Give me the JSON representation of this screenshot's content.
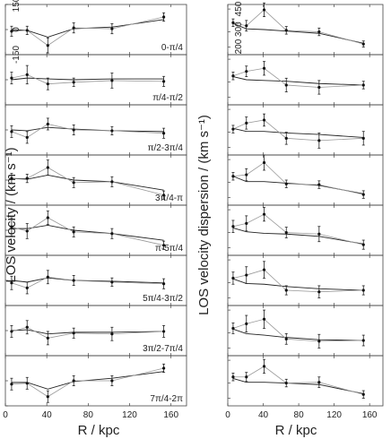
{
  "chart_data": [
    {
      "type": "scatter",
      "ylabel": "LOS velocity / (km s⁻¹)",
      "xlabel": "R / kpc",
      "xlim": [
        0,
        175
      ],
      "ylim": [
        -150,
        150
      ],
      "xticks": [
        0,
        40,
        80,
        120,
        160
      ],
      "yticks": [
        150,
        0,
        -150
      ],
      "panels": [
        {
          "label": "0-π/4",
          "points": [
            {
              "x": 6,
              "y": -10,
              "err": 30
            },
            {
              "x": 21,
              "y": -5,
              "err": 25
            },
            {
              "x": 41,
              "y": -95,
              "err": 45
            },
            {
              "x": 66,
              "y": 10,
              "err": 30
            },
            {
              "x": 103,
              "y": 5,
              "err": 30
            },
            {
              "x": 153,
              "y": 75,
              "err": 25
            }
          ],
          "model": [
            {
              "x": 6,
              "y": 0
            },
            {
              "x": 21,
              "y": -5
            },
            {
              "x": 41,
              "y": -45
            },
            {
              "x": 66,
              "y": 5
            },
            {
              "x": 103,
              "y": 15
            },
            {
              "x": 153,
              "y": 60
            }
          ]
        },
        {
          "label": "π/4-π/2",
          "points": [
            {
              "x": 6,
              "y": 10,
              "err": 35
            },
            {
              "x": 21,
              "y": 30,
              "err": 55
            },
            {
              "x": 41,
              "y": -25,
              "err": 35
            },
            {
              "x": 66,
              "y": -15,
              "err": 25
            },
            {
              "x": 103,
              "y": -5,
              "err": 45
            },
            {
              "x": 153,
              "y": -10,
              "err": 30
            }
          ],
          "model": [
            {
              "x": 6,
              "y": 0
            },
            {
              "x": 21,
              "y": 10
            },
            {
              "x": 41,
              "y": 5
            },
            {
              "x": 66,
              "y": 0
            },
            {
              "x": 103,
              "y": 5
            },
            {
              "x": 153,
              "y": 5
            }
          ]
        },
        {
          "label": "π/2-3π/4",
          "points": [
            {
              "x": 6,
              "y": -10,
              "err": 35
            },
            {
              "x": 21,
              "y": -45,
              "err": 35
            },
            {
              "x": 41,
              "y": 35,
              "err": 35
            },
            {
              "x": 66,
              "y": 0,
              "err": 30
            },
            {
              "x": 103,
              "y": -5,
              "err": 25
            },
            {
              "x": 153,
              "y": -20,
              "err": 30
            }
          ],
          "model": [
            {
              "x": 6,
              "y": 0
            },
            {
              "x": 21,
              "y": -5
            },
            {
              "x": 41,
              "y": 15
            },
            {
              "x": 66,
              "y": 5
            },
            {
              "x": 103,
              "y": -5
            },
            {
              "x": 153,
              "y": -10
            }
          ]
        },
        {
          "label": "3π/4-π",
          "points": [
            {
              "x": 6,
              "y": 10,
              "err": 30
            },
            {
              "x": 21,
              "y": 10,
              "err": 25
            },
            {
              "x": 41,
              "y": 75,
              "err": 45
            },
            {
              "x": 66,
              "y": -15,
              "err": 30
            },
            {
              "x": 103,
              "y": -10,
              "err": 30
            },
            {
              "x": 153,
              "y": -90,
              "err": 25
            }
          ],
          "model": [
            {
              "x": 6,
              "y": 10
            },
            {
              "x": 21,
              "y": 5
            },
            {
              "x": 41,
              "y": 30
            },
            {
              "x": 66,
              "y": 0
            },
            {
              "x": 103,
              "y": -10
            },
            {
              "x": 153,
              "y": -60
            }
          ]
        },
        {
          "label": "π-5π/4",
          "points": [
            {
              "x": 6,
              "y": 20,
              "err": 55
            },
            {
              "x": 21,
              "y": -5,
              "err": 45
            },
            {
              "x": 41,
              "y": 75,
              "err": 40
            },
            {
              "x": 66,
              "y": -10,
              "err": 30
            },
            {
              "x": 103,
              "y": -20,
              "err": 30
            },
            {
              "x": 153,
              "y": -90,
              "err": 25
            }
          ],
          "model": [
            {
              "x": 6,
              "y": 10
            },
            {
              "x": 21,
              "y": 10
            },
            {
              "x": 41,
              "y": 30
            },
            {
              "x": 66,
              "y": 0
            },
            {
              "x": 103,
              "y": -20
            },
            {
              "x": 153,
              "y": -60
            }
          ]
        },
        {
          "label": "5π/4-3π/2",
          "points": [
            {
              "x": 6,
              "y": -15,
              "err": 40
            },
            {
              "x": 21,
              "y": -45,
              "err": 35
            },
            {
              "x": 41,
              "y": 20,
              "err": 40
            },
            {
              "x": 66,
              "y": 0,
              "err": 30
            },
            {
              "x": 103,
              "y": -10,
              "err": 25
            },
            {
              "x": 153,
              "y": -20,
              "err": 30
            }
          ],
          "model": [
            {
              "x": 6,
              "y": 0
            },
            {
              "x": 21,
              "y": -10
            },
            {
              "x": 41,
              "y": 15
            },
            {
              "x": 66,
              "y": 0
            },
            {
              "x": 103,
              "y": -5
            },
            {
              "x": 153,
              "y": -15
            }
          ]
        },
        {
          "label": "3π/2-7π/4",
          "points": [
            {
              "x": 6,
              "y": -5,
              "err": 35
            },
            {
              "x": 21,
              "y": 20,
              "err": 40
            },
            {
              "x": 41,
              "y": -45,
              "err": 40
            },
            {
              "x": 66,
              "y": -15,
              "err": 30
            },
            {
              "x": 103,
              "y": -20,
              "err": 40
            },
            {
              "x": 153,
              "y": -5,
              "err": 35
            }
          ],
          "model": [
            {
              "x": 6,
              "y": 0
            },
            {
              "x": 21,
              "y": 5
            },
            {
              "x": 41,
              "y": -20
            },
            {
              "x": 66,
              "y": -10
            },
            {
              "x": 103,
              "y": -10
            },
            {
              "x": 153,
              "y": -5
            }
          ]
        },
        {
          "label": "7π/4-2π",
          "points": [
            {
              "x": 6,
              "y": -20,
              "err": 35
            },
            {
              "x": 21,
              "y": -15,
              "err": 35
            },
            {
              "x": 41,
              "y": -95,
              "err": 35
            },
            {
              "x": 66,
              "y": 0,
              "err": 30
            },
            {
              "x": 103,
              "y": 0,
              "err": 30
            },
            {
              "x": 153,
              "y": 75,
              "err": 25
            }
          ],
          "model": [
            {
              "x": 6,
              "y": -10
            },
            {
              "x": 21,
              "y": -10
            },
            {
              "x": 41,
              "y": -50
            },
            {
              "x": 66,
              "y": -5
            },
            {
              "x": 103,
              "y": 15
            },
            {
              "x": 153,
              "y": 55
            }
          ]
        }
      ]
    },
    {
      "type": "scatter",
      "ylabel": "LOS velocity dispersion / (km s⁻¹)",
      "xlabel": "R / kpc",
      "xlim": [
        0,
        175
      ],
      "ylim": [
        150,
        480
      ],
      "xticks": [
        0,
        40,
        80,
        120,
        160
      ],
      "yticks": [
        450,
        300,
        200
      ],
      "ytick_text": "200 300",
      "panels": [
        {
          "label": "",
          "points": [
            {
              "x": 6,
              "y": 360,
              "err": 25
            },
            {
              "x": 21,
              "y": 340,
              "err": 35
            },
            {
              "x": 41,
              "y": 445,
              "err": 45
            },
            {
              "x": 66,
              "y": 310,
              "err": 25
            },
            {
              "x": 103,
              "y": 300,
              "err": 25
            },
            {
              "x": 153,
              "y": 220,
              "err": 20
            }
          ],
          "model": [
            {
              "x": 6,
              "y": 355
            },
            {
              "x": 21,
              "y": 320
            },
            {
              "x": 41,
              "y": 315
            },
            {
              "x": 66,
              "y": 305
            },
            {
              "x": 103,
              "y": 290
            },
            {
              "x": 153,
              "y": 225
            }
          ]
        },
        {
          "label": "",
          "points": [
            {
              "x": 6,
              "y": 340,
              "err": 25
            },
            {
              "x": 21,
              "y": 370,
              "err": 35
            },
            {
              "x": 41,
              "y": 390,
              "err": 45
            },
            {
              "x": 66,
              "y": 280,
              "err": 45
            },
            {
              "x": 103,
              "y": 265,
              "err": 45
            },
            {
              "x": 153,
              "y": 280,
              "err": 25
            }
          ],
          "model": [
            {
              "x": 6,
              "y": 335
            },
            {
              "x": 21,
              "y": 315
            },
            {
              "x": 41,
              "y": 310
            },
            {
              "x": 66,
              "y": 305
            },
            {
              "x": 103,
              "y": 290
            },
            {
              "x": 153,
              "y": 280
            }
          ]
        },
        {
          "label": "",
          "points": [
            {
              "x": 6,
              "y": 320,
              "err": 25
            },
            {
              "x": 21,
              "y": 360,
              "err": 40
            },
            {
              "x": 41,
              "y": 380,
              "err": 40
            },
            {
              "x": 66,
              "y": 260,
              "err": 40
            },
            {
              "x": 103,
              "y": 245,
              "err": 50
            },
            {
              "x": 153,
              "y": 260,
              "err": 45
            }
          ],
          "model": [
            {
              "x": 6,
              "y": 325
            },
            {
              "x": 21,
              "y": 305
            },
            {
              "x": 41,
              "y": 305
            },
            {
              "x": 66,
              "y": 295
            },
            {
              "x": 103,
              "y": 285
            },
            {
              "x": 153,
              "y": 265
            }
          ]
        },
        {
          "label": "",
          "points": [
            {
              "x": 6,
              "y": 340,
              "err": 25
            },
            {
              "x": 21,
              "y": 350,
              "err": 40
            },
            {
              "x": 41,
              "y": 430,
              "err": 50
            },
            {
              "x": 66,
              "y": 290,
              "err": 25
            },
            {
              "x": 103,
              "y": 285,
              "err": 25
            },
            {
              "x": 153,
              "y": 220,
              "err": 25
            }
          ],
          "model": [
            {
              "x": 6,
              "y": 340
            },
            {
              "x": 21,
              "y": 305
            },
            {
              "x": 41,
              "y": 305
            },
            {
              "x": 66,
              "y": 295
            },
            {
              "x": 103,
              "y": 280
            },
            {
              "x": 153,
              "y": 225
            }
          ]
        },
        {
          "label": "",
          "points": [
            {
              "x": 6,
              "y": 340,
              "err": 40
            },
            {
              "x": 21,
              "y": 360,
              "err": 50
            },
            {
              "x": 41,
              "y": 420,
              "err": 45
            },
            {
              "x": 66,
              "y": 300,
              "err": 35
            },
            {
              "x": 103,
              "y": 290,
              "err": 50
            },
            {
              "x": 153,
              "y": 220,
              "err": 30
            }
          ],
          "model": [
            {
              "x": 6,
              "y": 330
            },
            {
              "x": 21,
              "y": 305
            },
            {
              "x": 41,
              "y": 295
            },
            {
              "x": 66,
              "y": 290
            },
            {
              "x": 103,
              "y": 275
            },
            {
              "x": 153,
              "y": 225
            }
          ]
        },
        {
          "label": "",
          "points": [
            {
              "x": 6,
              "y": 330,
              "err": 40
            },
            {
              "x": 21,
              "y": 350,
              "err": 55
            },
            {
              "x": 41,
              "y": 385,
              "err": 55
            },
            {
              "x": 66,
              "y": 250,
              "err": 30
            },
            {
              "x": 103,
              "y": 240,
              "err": 40
            },
            {
              "x": 153,
              "y": 250,
              "err": 30
            }
          ],
          "model": [
            {
              "x": 6,
              "y": 325
            },
            {
              "x": 21,
              "y": 295
            },
            {
              "x": 41,
              "y": 290
            },
            {
              "x": 66,
              "y": 275
            },
            {
              "x": 103,
              "y": 260
            },
            {
              "x": 153,
              "y": 250
            }
          ]
        },
        {
          "label": "",
          "points": [
            {
              "x": 6,
              "y": 330,
              "err": 35
            },
            {
              "x": 21,
              "y": 360,
              "err": 55
            },
            {
              "x": 41,
              "y": 390,
              "err": 60
            },
            {
              "x": 66,
              "y": 260,
              "err": 35
            },
            {
              "x": 103,
              "y": 245,
              "err": 45
            },
            {
              "x": 153,
              "y": 250,
              "err": 35
            }
          ],
          "model": [
            {
              "x": 6,
              "y": 325
            },
            {
              "x": 21,
              "y": 295
            },
            {
              "x": 41,
              "y": 285
            },
            {
              "x": 66,
              "y": 270
            },
            {
              "x": 103,
              "y": 255
            },
            {
              "x": 153,
              "y": 250
            }
          ]
        },
        {
          "label": "",
          "points": [
            {
              "x": 6,
              "y": 340,
              "err": 25
            },
            {
              "x": 21,
              "y": 340,
              "err": 30
            },
            {
              "x": 41,
              "y": 410,
              "err": 45
            },
            {
              "x": 66,
              "y": 300,
              "err": 25
            },
            {
              "x": 103,
              "y": 305,
              "err": 35
            },
            {
              "x": 153,
              "y": 225,
              "err": 25
            }
          ],
          "model": [
            {
              "x": 6,
              "y": 330
            },
            {
              "x": 21,
              "y": 305
            },
            {
              "x": 41,
              "y": 305
            },
            {
              "x": 66,
              "y": 300
            },
            {
              "x": 103,
              "y": 290
            },
            {
              "x": 153,
              "y": 230
            }
          ]
        }
      ]
    }
  ]
}
